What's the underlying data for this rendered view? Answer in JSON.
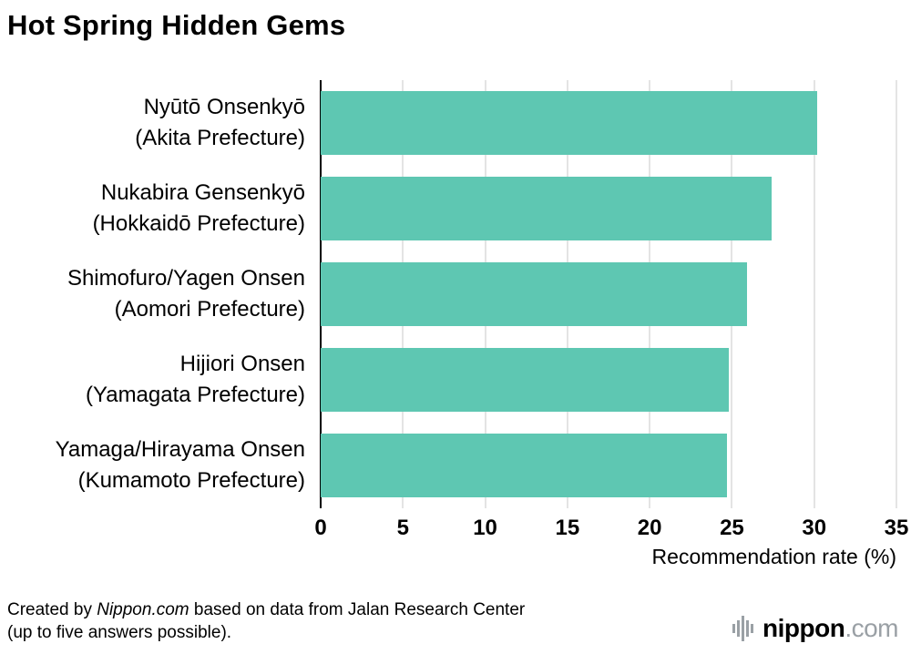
{
  "chart_data": {
    "type": "bar",
    "orientation": "horizontal",
    "title": "Hot Spring Hidden Gems",
    "categories": [
      [
        "Nyūtō Onsenkyō",
        "(Akita Prefecture)"
      ],
      [
        "Nukabira Gensenkyō",
        "(Hokkaidō Prefecture)"
      ],
      [
        "Shimofuro/Yagen Onsen",
        "(Aomori Prefecture)"
      ],
      [
        "Hijiori Onsen",
        "(Yamagata Prefecture)"
      ],
      [
        "Yamaga/Hirayama Onsen",
        "(Kumamoto Prefecture)"
      ]
    ],
    "values": [
      30.2,
      27.4,
      25.9,
      24.8,
      24.7
    ],
    "xlabel": "Recommendation rate (%)",
    "xlim": [
      0,
      35
    ],
    "xticks": [
      0,
      5,
      10,
      15,
      20,
      25,
      30,
      35
    ],
    "bar_color": "#5ec7b2",
    "grid": true,
    "legend": "none"
  },
  "footer": {
    "source_prefix": "Created by ",
    "source_italic": "Nippon.com",
    "source_suffix": " based on data from Jalan Research Center",
    "source_line2": "(up to five answers possible).",
    "logo": {
      "name": "nippon",
      "dot": ".",
      "tld": "com"
    }
  }
}
